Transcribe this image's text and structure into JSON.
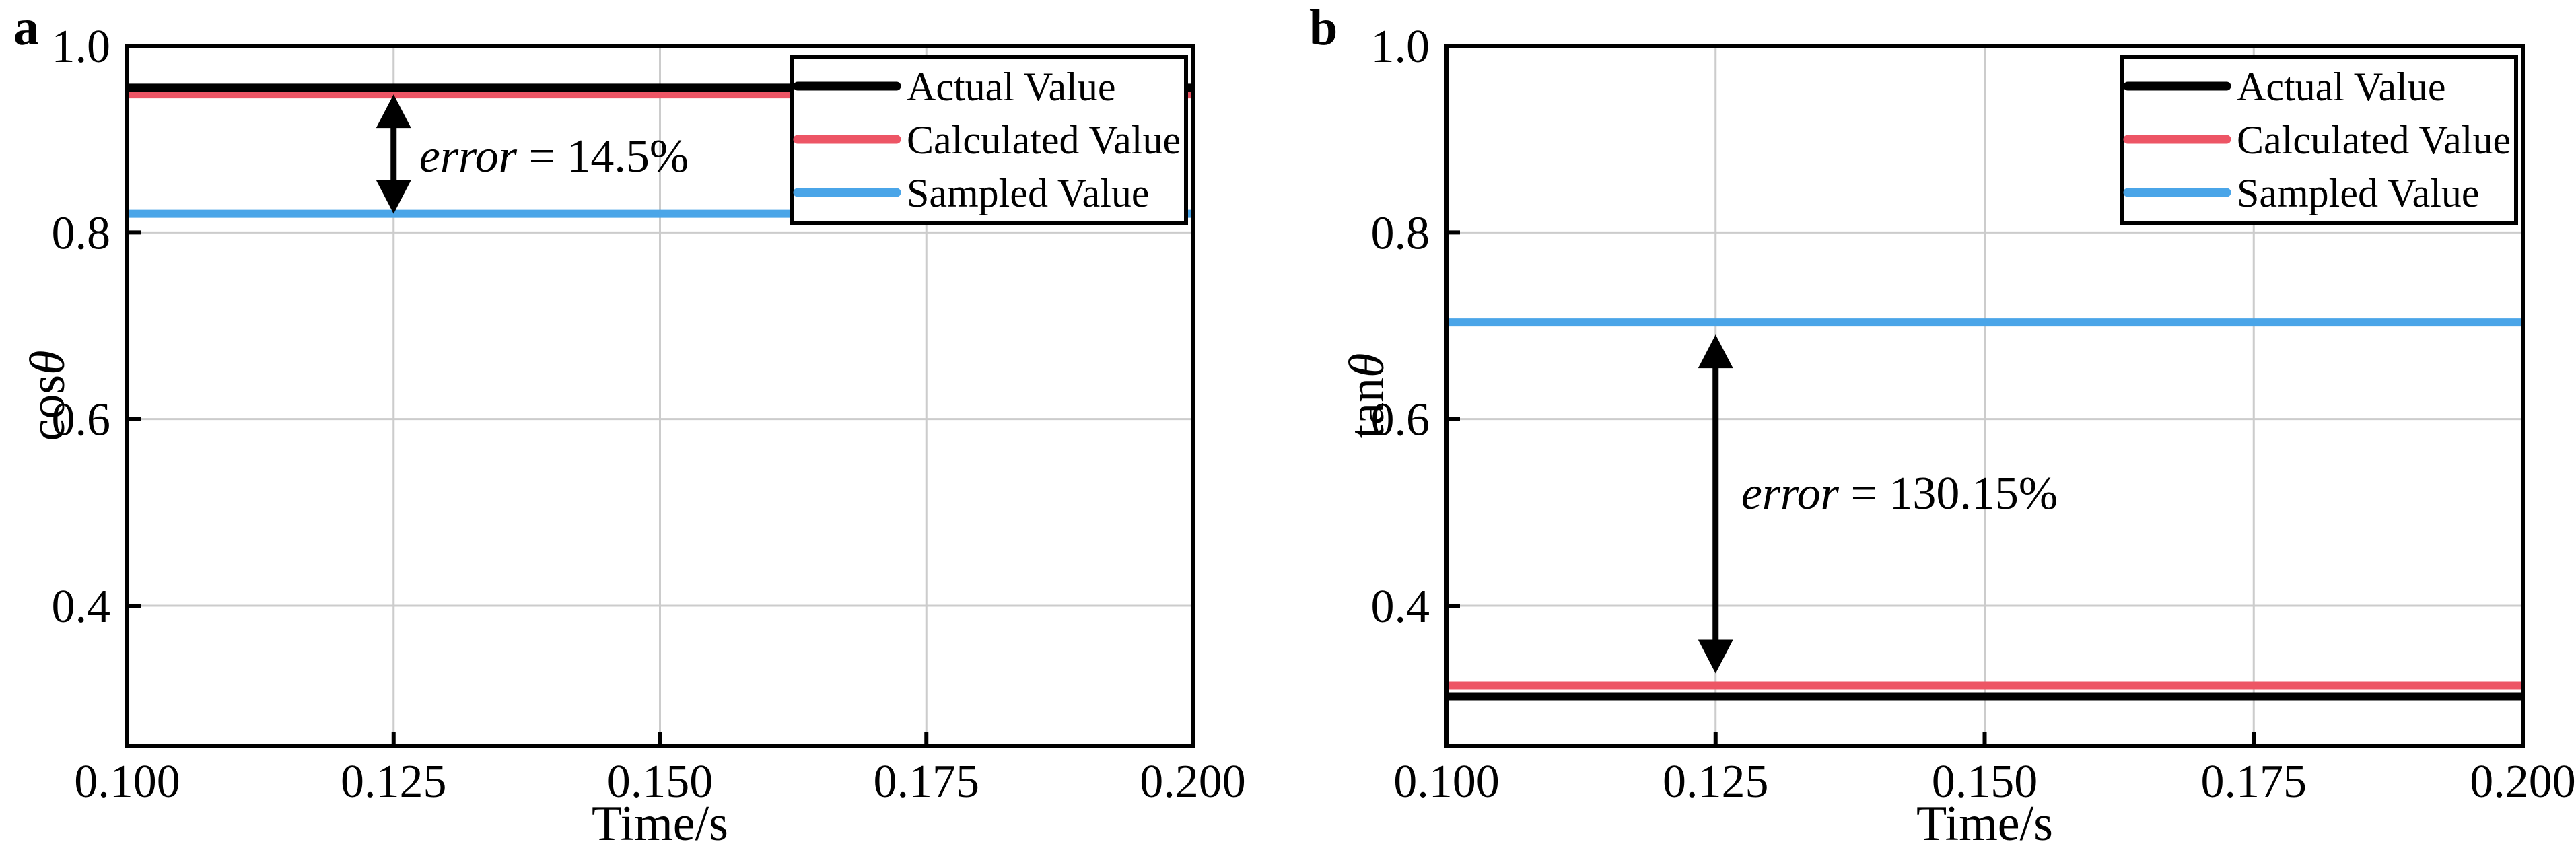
{
  "figure": {
    "background": "#ffffff",
    "description": "Two-panel line chart comparing actual, calculated and sampled values"
  },
  "colors": {
    "axis": "#000000",
    "grid": "#cccccc",
    "legend_border": "#000000",
    "legend_background": "#ffffff",
    "actual": "#000000",
    "calculated": "#ed5565",
    "sampled": "#4aa5e8"
  },
  "legend": {
    "position": "top-right",
    "items": [
      "Actual Value",
      "Calculated Value",
      "Sampled Value"
    ]
  },
  "chart_data": [
    {
      "type": "line",
      "panel_label": "a",
      "title": "",
      "xlabel": "Time/s",
      "ylabel": "cosθ",
      "ylabel_plain": "cos",
      "ylabel_symbol": "θ",
      "xlim": [
        0.1,
        0.2
      ],
      "ylim": [
        0.25,
        1.0
      ],
      "xtick_values": [
        0.1,
        0.125,
        0.15,
        0.175,
        0.2
      ],
      "xtick_labels": [
        "0.100",
        "0.125",
        "0.150",
        "0.175",
        "0.200"
      ],
      "ytick_values": [
        0.4,
        0.6,
        0.8,
        1.0
      ],
      "ytick_labels": [
        "0.4",
        "0.6",
        "0.8",
        "1.0"
      ],
      "grid": true,
      "legend_position": "top-right",
      "x": [
        0.1,
        0.2
      ],
      "series": [
        {
          "name": "Actual Value",
          "color_key": "actual",
          "color": "#000000",
          "values": [
            0.955,
            0.955
          ]
        },
        {
          "name": "Calculated Value",
          "color_key": "calculated",
          "color": "#ed5565",
          "values": [
            0.948,
            0.948
          ]
        },
        {
          "name": "Sampled Value",
          "color_key": "sampled",
          "color": "#4aa5e8",
          "values": [
            0.82,
            0.82
          ]
        }
      ],
      "annotation": {
        "arrow_x": 0.125,
        "from_value": 0.948,
        "to_value": 0.82,
        "text": "error = 14.5%",
        "italic_part": "error",
        "rest_part": " = 14.5%"
      }
    },
    {
      "type": "line",
      "panel_label": "b",
      "title": "",
      "xlabel": "Time/s",
      "ylabel": "tanθ",
      "ylabel_plain": "tan",
      "ylabel_symbol": "θ",
      "xlim": [
        0.1,
        0.2
      ],
      "ylim": [
        0.25,
        1.0
      ],
      "xtick_values": [
        0.1,
        0.125,
        0.15,
        0.175,
        0.2
      ],
      "xtick_labels": [
        "0.100",
        "0.125",
        "0.150",
        "0.175",
        "0.200"
      ],
      "ytick_values": [
        0.4,
        0.6,
        0.8,
        1.0
      ],
      "ytick_labels": [
        "0.4",
        "0.6",
        "0.8",
        "1.0"
      ],
      "grid": true,
      "legend_position": "top-right",
      "x": [
        0.1,
        0.2
      ],
      "series": [
        {
          "name": "Actual Value",
          "color_key": "actual",
          "color": "#000000",
          "values": [
            0.303,
            0.303
          ]
        },
        {
          "name": "Calculated Value",
          "color_key": "calculated",
          "color": "#ed5565",
          "values": [
            0.3145,
            0.3145
          ]
        },
        {
          "name": "Sampled Value",
          "color_key": "sampled",
          "color": "#4aa5e8",
          "values": [
            0.7035,
            0.7035
          ]
        }
      ],
      "annotation": {
        "arrow_x": 0.125,
        "from_value": 0.7035,
        "to_value": 0.3145,
        "text": "error = 130.15%",
        "italic_part": "error",
        "rest_part": " = 130.15%"
      }
    }
  ]
}
